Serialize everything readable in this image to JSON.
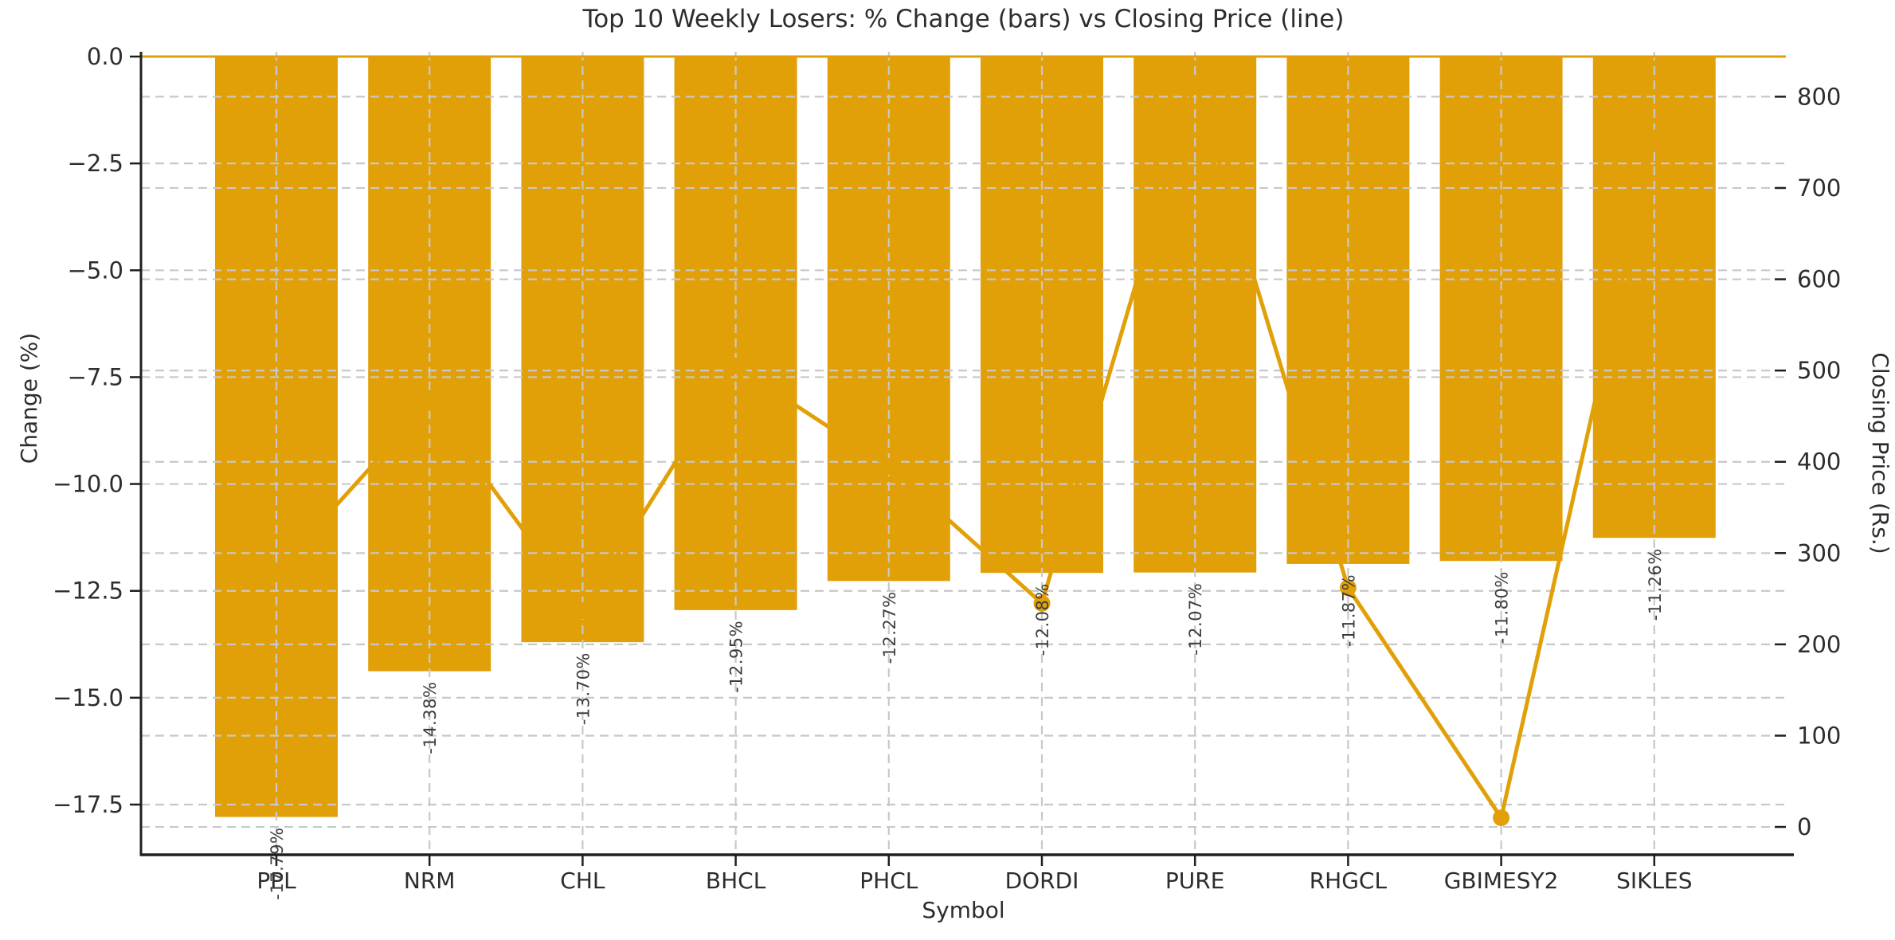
{
  "chart_data": {
    "type": "combo",
    "title": "Top 10 Weekly Losers: % Change (bars) vs Closing Price (line)",
    "xlabel": "Symbol",
    "ylabel_left": "Change (%)",
    "ylabel_right": "Closing Price (Rs.)",
    "categories": [
      "PPL",
      "NRM",
      "CHL",
      "BHCL",
      "PHCL",
      "DORDI",
      "PURE",
      "RHGCL",
      "GBIMESY2",
      "SIKLES"
    ],
    "series": [
      {
        "name": "% Change",
        "type": "bar",
        "axis": "left",
        "values": [
          -17.79,
          -14.38,
          -13.7,
          -12.95,
          -12.27,
          -12.08,
          -12.07,
          -11.87,
          -11.8,
          -11.26
        ],
        "labels": [
          "-17.79%",
          "-14.38%",
          "-13.70%",
          "-12.95%",
          "-12.27%",
          "-12.08%",
          "-12.07%",
          "-11.87%",
          "-11.80%",
          "-11.26%"
        ]
      },
      {
        "name": "Closing Price (Rs.)",
        "type": "line",
        "axis": "right",
        "values": [
          280,
          465,
          237,
          505,
          395,
          245,
          815,
          262,
          10,
          755
        ]
      }
    ],
    "y_left": {
      "ticks": [
        "0.0",
        "−2.5",
        "−5.0",
        "−7.5",
        "−10.0",
        "−12.5",
        "−15.0",
        "−17.5"
      ],
      "tick_values": [
        0,
        -2.5,
        -5,
        -7.5,
        -10,
        -12.5,
        -15,
        -17.5
      ],
      "range": [
        -18.674,
        0.112
      ]
    },
    "y_right": {
      "ticks": [
        "0",
        "100",
        "200",
        "300",
        "400",
        "500",
        "600",
        "700",
        "800"
      ],
      "tick_values": [
        0,
        100,
        200,
        300,
        400,
        500,
        600,
        700,
        800
      ],
      "range": [
        -30.5,
        849.2
      ]
    },
    "grid": true,
    "zero_line": 0
  },
  "colors": {
    "accent": "#E2A008",
    "grid": "#c8c8c8",
    "text": "#2d2d2d",
    "spine": "#1f1f1f",
    "bar_label": "#3d3d3d",
    "background": "#ffffff"
  }
}
